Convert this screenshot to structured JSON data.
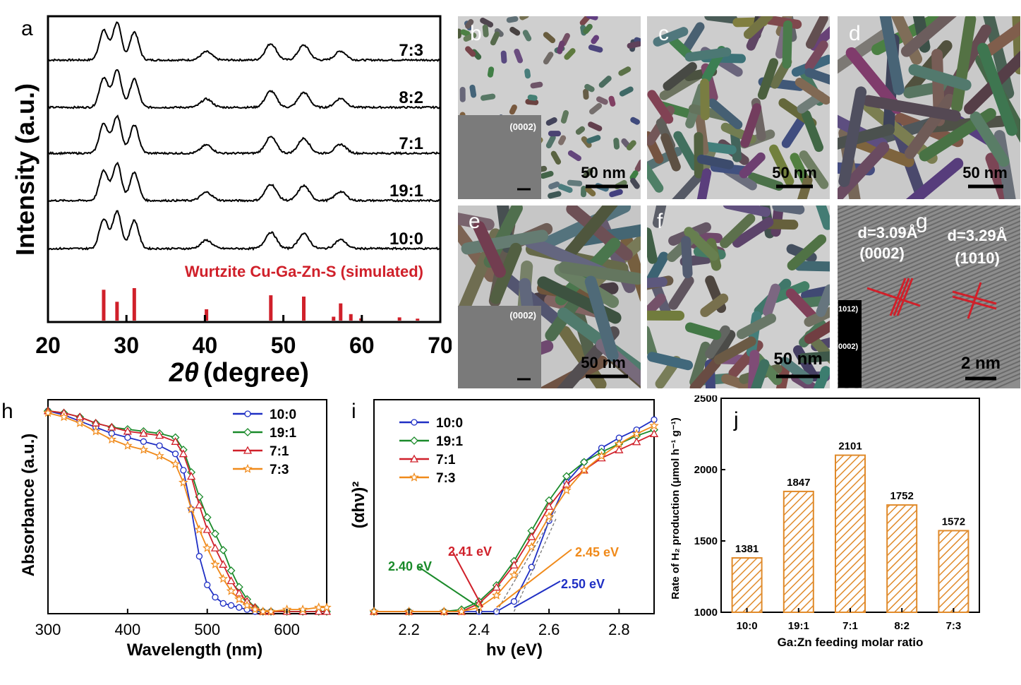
{
  "panel_a": {
    "label": "a",
    "ylabel": "Intensity (a.u.)",
    "xlabel_theta": "2θ",
    "xlabel_unit": "(degree)",
    "xticks": [
      "20",
      "30",
      "40",
      "50",
      "60",
      "70"
    ],
    "traces": [
      "7:3",
      "8:2",
      "7:1",
      "19:1",
      "10:0"
    ],
    "reference_label": "Wurtzite Cu-Ga-Zn-S (simulated)",
    "colors": {
      "reference": "#d0202a",
      "trace": "#000000"
    }
  },
  "tem": {
    "b": {
      "label": "b",
      "scale": "50 nm",
      "inset": "(0002)"
    },
    "c": {
      "label": "c",
      "scale": "50 nm"
    },
    "d": {
      "label": "d",
      "scale": "50 nm"
    },
    "e": {
      "label": "e",
      "scale": "50 nm",
      "inset": "(0002)"
    },
    "f": {
      "label": "f",
      "scale": "50 nm"
    },
    "g": {
      "label": "g",
      "scale": "2 nm",
      "d1": "d=3.09Å",
      "p1": "(0002)",
      "d2": "d=3.29Å",
      "p2": "(1010)",
      "fft1": "1012)",
      "fft2": "0002)"
    }
  },
  "chart_data": [
    {
      "type": "line",
      "panel": "a",
      "title": "",
      "xlabel": "2θ (degree)",
      "ylabel": "Intensity (a.u.)",
      "xlim": [
        20,
        70
      ],
      "peaks_2theta": [
        27.1,
        28.8,
        31.0,
        40.2,
        48.4,
        52.6,
        57.3
      ],
      "series": [
        {
          "name": "7:3"
        },
        {
          "name": "8:2"
        },
        {
          "name": "7:1"
        },
        {
          "name": "19:1"
        },
        {
          "name": "10:0"
        }
      ],
      "reference": {
        "name": "Wurtzite Cu-Ga-Zn-S (simulated)",
        "x": [
          27.1,
          28.8,
          31.0,
          40.2,
          48.4,
          52.6,
          56.4,
          57.3,
          58.6,
          59.9,
          64.8,
          67.1
        ],
        "y": [
          0.95,
          0.58,
          1.0,
          0.35,
          0.78,
          0.74,
          0.12,
          0.53,
          0.2,
          0.07,
          0.1,
          0.06
        ]
      }
    },
    {
      "type": "line",
      "panel": "h",
      "title": "",
      "xlabel": "Wavelength (nm)",
      "ylabel": "Absorbance (a.u.)",
      "xlim": [
        300,
        650
      ],
      "xticks": [
        300,
        400,
        500,
        600
      ],
      "x": [
        300,
        320,
        340,
        360,
        380,
        400,
        420,
        440,
        460,
        470,
        480,
        490,
        500,
        510,
        520,
        530,
        540,
        550,
        560,
        570,
        580,
        600,
        620,
        640,
        650
      ],
      "series": [
        {
          "name": "10:0",
          "color": "#1f2fc4",
          "values": [
            0.98,
            0.96,
            0.93,
            0.9,
            0.87,
            0.85,
            0.83,
            0.81,
            0.77,
            0.69,
            0.5,
            0.27,
            0.13,
            0.07,
            0.04,
            0.03,
            0.02,
            0.01,
            0.0,
            0.0,
            0.0,
            0.0,
            0.0,
            0.0,
            0.0
          ]
        },
        {
          "name": "19:1",
          "color": "#1a8a2a",
          "values": [
            0.98,
            0.97,
            0.95,
            0.92,
            0.9,
            0.89,
            0.88,
            0.87,
            0.85,
            0.79,
            0.68,
            0.56,
            0.46,
            0.38,
            0.3,
            0.2,
            0.12,
            0.06,
            0.02,
            0.0,
            0.0,
            0.0,
            0.0,
            0.0,
            0.0
          ]
        },
        {
          "name": "7:1",
          "color": "#d0202a",
          "values": [
            0.98,
            0.97,
            0.95,
            0.92,
            0.9,
            0.88,
            0.87,
            0.86,
            0.83,
            0.77,
            0.66,
            0.52,
            0.4,
            0.31,
            0.23,
            0.15,
            0.09,
            0.05,
            0.02,
            0.0,
            0.0,
            0.0,
            0.0,
            0.0,
            0.0
          ]
        },
        {
          "name": "7:3",
          "color": "#f08a1a",
          "values": [
            0.97,
            0.95,
            0.92,
            0.88,
            0.84,
            0.81,
            0.79,
            0.76,
            0.72,
            0.63,
            0.5,
            0.4,
            0.31,
            0.23,
            0.16,
            0.1,
            0.06,
            0.03,
            0.01,
            0.0,
            0.0,
            0.01,
            0.01,
            0.02,
            0.02
          ]
        }
      ]
    },
    {
      "type": "line",
      "panel": "i",
      "title": "",
      "xlabel": "hν (eV)",
      "ylabel": "(αhν)²",
      "xlim": [
        2.1,
        2.9
      ],
      "xticks": [
        2.2,
        2.4,
        2.6,
        2.8
      ],
      "x": [
        2.1,
        2.2,
        2.3,
        2.35,
        2.4,
        2.45,
        2.5,
        2.55,
        2.6,
        2.65,
        2.7,
        2.75,
        2.8,
        2.85,
        2.9
      ],
      "series": [
        {
          "name": "10:0",
          "color": "#1f2fc4",
          "values": [
            0.0,
            0.0,
            0.0,
            0.0,
            0.0,
            0.0,
            0.05,
            0.22,
            0.45,
            0.64,
            0.74,
            0.81,
            0.86,
            0.9,
            0.95
          ]
        },
        {
          "name": "19:1",
          "color": "#1a8a2a",
          "values": [
            0.0,
            0.0,
            0.0,
            0.01,
            0.05,
            0.13,
            0.25,
            0.4,
            0.55,
            0.67,
            0.74,
            0.79,
            0.83,
            0.87,
            0.9
          ]
        },
        {
          "name": "7:1",
          "color": "#d0202a",
          "values": [
            0.0,
            0.0,
            0.0,
            0.0,
            0.04,
            0.12,
            0.23,
            0.37,
            0.52,
            0.63,
            0.7,
            0.76,
            0.8,
            0.84,
            0.88
          ]
        },
        {
          "name": "7:3",
          "color": "#f08a1a",
          "values": [
            0.0,
            0.0,
            0.0,
            0.0,
            0.02,
            0.08,
            0.18,
            0.32,
            0.47,
            0.6,
            0.7,
            0.77,
            0.83,
            0.88,
            0.92
          ]
        }
      ],
      "annotations": [
        {
          "text": "2.40 eV",
          "x": 2.4,
          "color": "#1a8a2a"
        },
        {
          "text": "2.41 eV",
          "x": 2.41,
          "color": "#d0202a"
        },
        {
          "text": "2.45 eV",
          "x": 2.45,
          "color": "#f08a1a"
        },
        {
          "text": "2.50 eV",
          "x": 2.5,
          "color": "#1f2fc4"
        }
      ]
    },
    {
      "type": "bar",
      "panel": "j",
      "title": "",
      "xlabel": "Ga:Zn feeding molar ratio",
      "ylabel": "Rate of H₂ production (μmol h⁻¹ g⁻¹)",
      "categories": [
        "10:0",
        "19:1",
        "7:1",
        "8:2",
        "7:3"
      ],
      "values": [
        1381,
        1847,
        2101,
        1752,
        1572
      ],
      "ylim": [
        1000,
        2500
      ],
      "yticks": [
        1000,
        1500,
        2000,
        2500
      ],
      "color": "#e08a2a"
    }
  ],
  "panel_labels": {
    "h": "h",
    "i": "i",
    "j": "j"
  }
}
